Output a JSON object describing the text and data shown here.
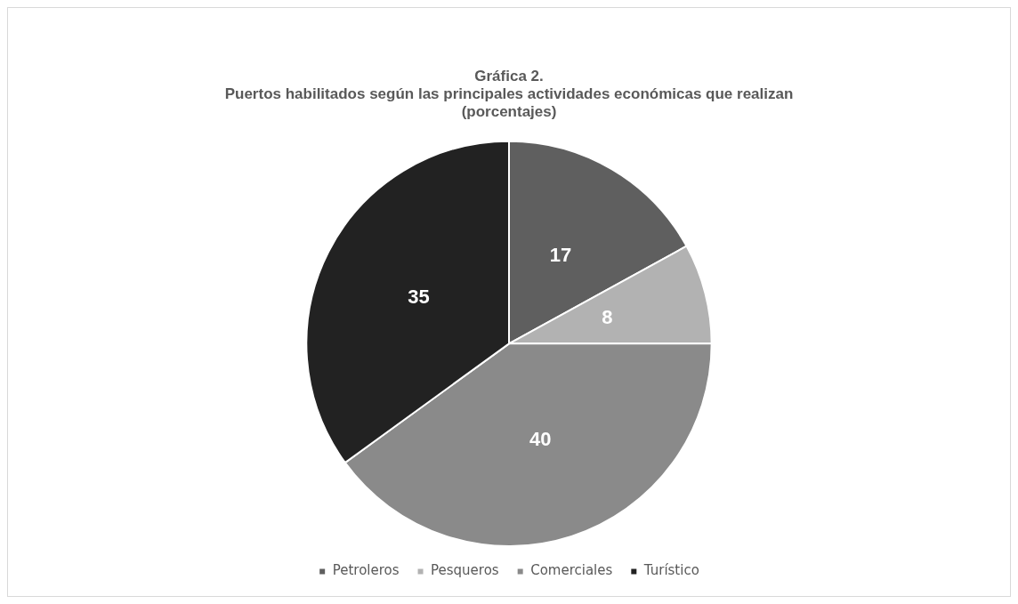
{
  "chart_data": {
    "type": "pie",
    "title": "Gráfica 2.\nPuertos habilitados según las principales actividades económicas que realizan\n(porcentajes)",
    "categories": [
      "Petroleros",
      "Pesqueros",
      "Comerciales",
      "Turístico"
    ],
    "values": [
      17,
      8,
      40,
      35
    ],
    "colors": [
      "#5f5f5f",
      "#b2b2b2",
      "#8a8a8a",
      "#222222"
    ],
    "data_labels": true,
    "legend": "bottom"
  }
}
